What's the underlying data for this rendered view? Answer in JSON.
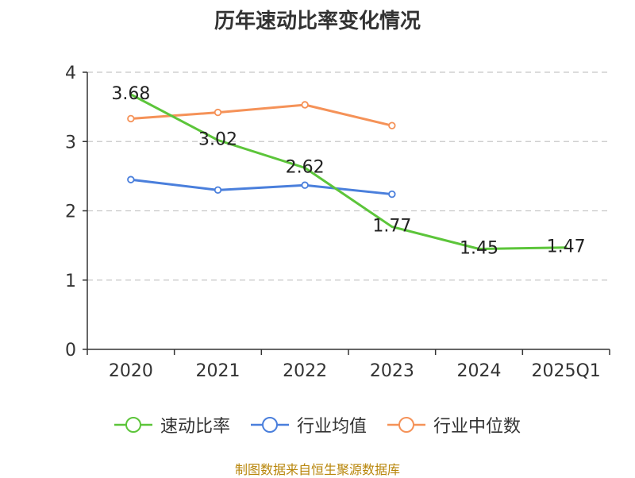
{
  "chart_data": {
    "type": "line",
    "title": "历年速动比率变化情况",
    "categories": [
      "2020",
      "2021",
      "2022",
      "2023",
      "2024",
      "2025Q1"
    ],
    "ylim": [
      0,
      4
    ],
    "yticks": [
      0,
      1,
      2,
      3,
      4
    ],
    "grid": true,
    "legend_position": "bottom",
    "series": [
      {
        "name": "速动比率",
        "color": "#5cc53a",
        "values": [
          3.68,
          3.02,
          2.62,
          1.77,
          1.45,
          1.47
        ],
        "labels": [
          "3.68",
          "3.02",
          "2.62",
          "1.77",
          "1.45",
          "1.47"
        ],
        "show_labels": true,
        "show_markers": false
      },
      {
        "name": "行业均值",
        "color": "#4a7fdc",
        "values": [
          2.45,
          2.3,
          2.37,
          2.24,
          null,
          null
        ],
        "show_labels": false,
        "show_markers": true
      },
      {
        "name": "行业中位数",
        "color": "#f59258",
        "values": [
          3.33,
          3.42,
          3.53,
          3.23,
          null,
          null
        ],
        "show_labels": false,
        "show_markers": true
      }
    ],
    "source": "制图数据来自恒生聚源数据库"
  }
}
